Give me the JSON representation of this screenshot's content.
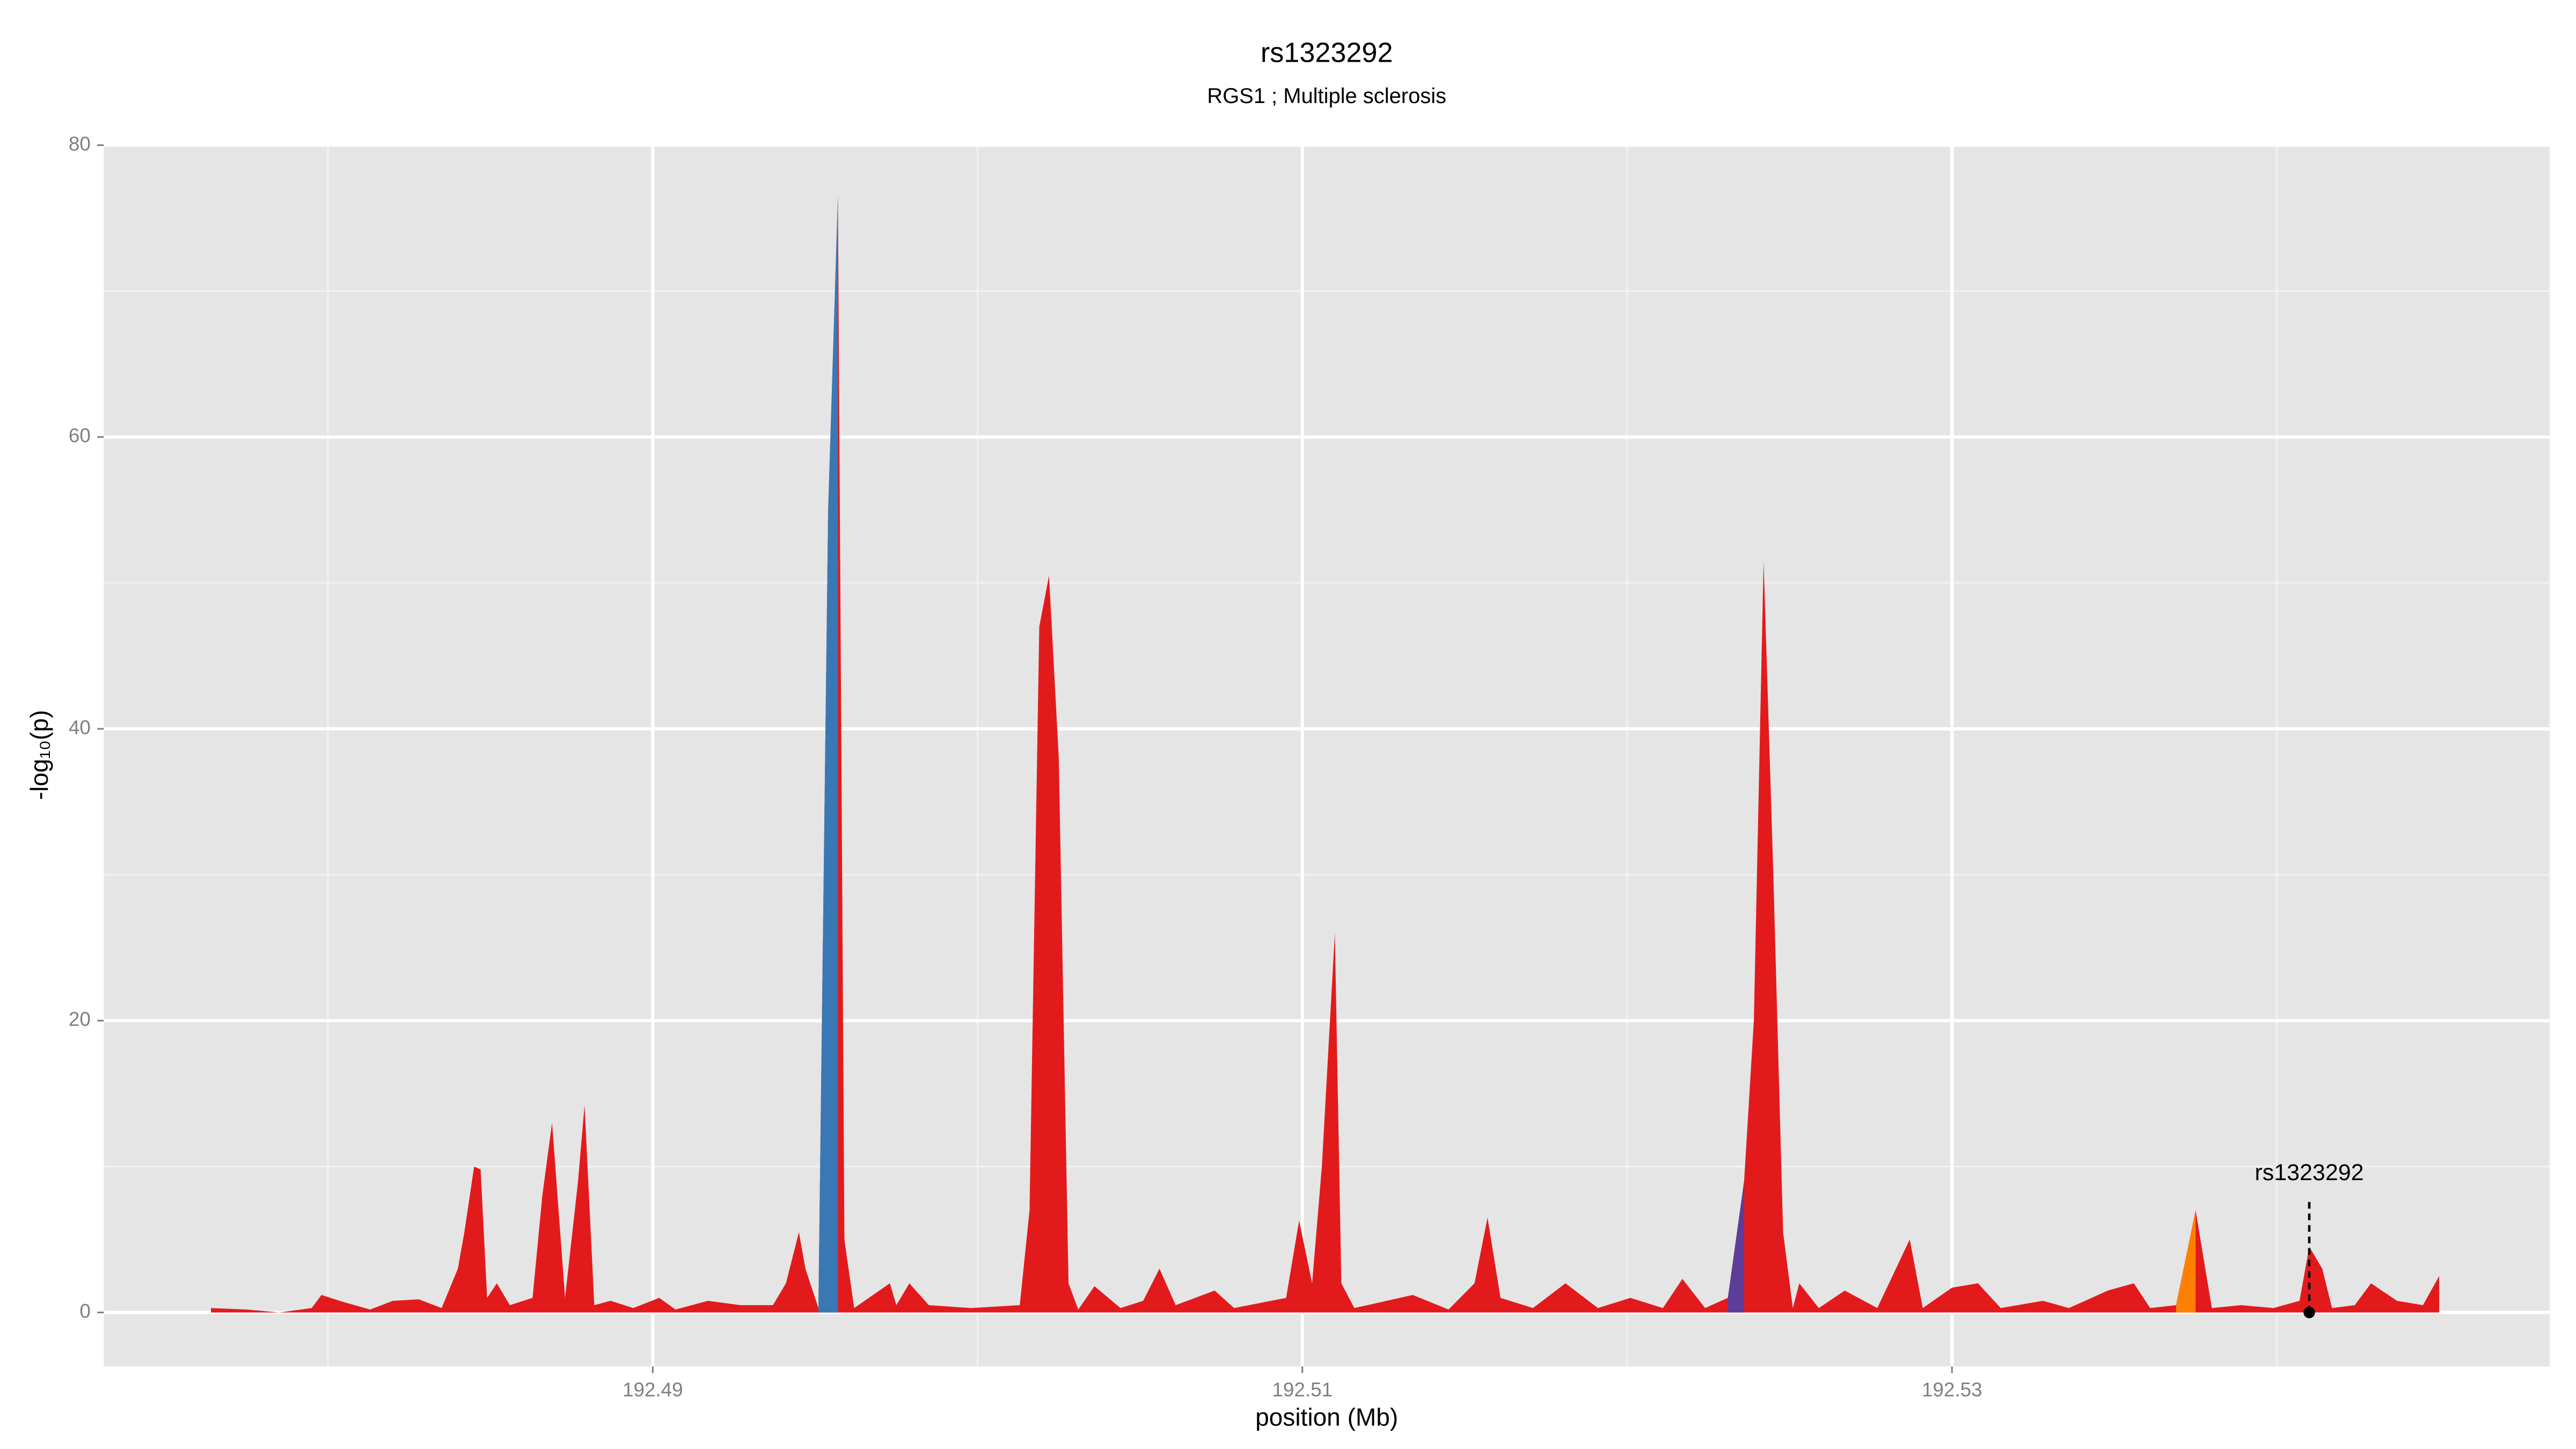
{
  "chart_data": {
    "type": "area",
    "title": "rs1323292",
    "subtitle": "RGS1 ; Multiple sclerosis",
    "x_label": "position (Mb)",
    "y_label": "-log₁₀(p)",
    "xlim": [
      192.4731,
      192.5484
    ],
    "ylim": [
      -3.7,
      80
    ],
    "xticks": [
      192.49,
      192.51,
      192.53
    ],
    "xminorticks": [
      192.48,
      192.5,
      192.52,
      192.54
    ],
    "yticks": [
      0,
      20,
      40,
      60,
      80
    ],
    "yminorticks": [
      10,
      30,
      50,
      70
    ],
    "grid": true,
    "series": [
      {
        "color": "#e31a1c",
        "x": [
          192.4764,
          192.4775,
          192.4785,
          192.4795,
          192.4798,
          192.4805,
          192.4813,
          192.482,
          192.4828,
          192.4835,
          192.484,
          192.4842,
          192.4845,
          192.4847,
          192.4849,
          192.4852,
          192.4856,
          192.4863,
          192.4866,
          192.4869,
          192.4873,
          192.4877,
          192.4879,
          192.4882,
          192.4887,
          192.4894,
          192.4902,
          192.4907,
          192.4917,
          192.4927,
          192.4937,
          192.4941,
          192.4945,
          192.4947,
          192.4951,
          192.4954,
          192.4957,
          192.4959,
          192.4962,
          192.4973,
          192.4975,
          192.4979,
          192.4985,
          192.4998,
          192.5013,
          192.5016,
          192.5019,
          192.5022,
          192.5025,
          192.5028,
          192.5031,
          192.5036,
          192.5044,
          192.5051,
          192.5056,
          192.5061,
          192.5073,
          192.5079,
          192.5095,
          192.5099,
          192.5103,
          192.5106,
          192.511,
          192.5112,
          192.5116,
          192.5134,
          192.5145,
          192.5153,
          192.5157,
          192.5161,
          192.5171,
          192.5181,
          192.5191,
          192.5201,
          192.5211,
          192.5217,
          192.5224,
          192.5231,
          192.5236,
          192.5239,
          192.5242,
          192.5245,
          192.5248,
          192.5251,
          192.5253,
          192.5259,
          192.5267,
          192.5277,
          192.5287,
          192.5291,
          192.53,
          192.5308,
          192.5315,
          192.5328,
          192.5336,
          192.5348,
          192.5356,
          192.5361,
          192.5369,
          192.5375,
          192.538,
          192.5389,
          192.5399,
          192.5407,
          192.541,
          192.5414,
          192.5417,
          192.5424,
          192.5429,
          192.5437,
          192.5445,
          192.545
        ],
        "values": [
          0.3,
          0.2,
          0,
          0.3,
          1.2,
          0.7,
          0.2,
          0.8,
          0.9,
          0.3,
          3,
          5.5,
          10,
          9.8,
          1,
          2,
          0.5,
          1,
          8,
          13,
          1,
          9,
          14.2,
          0.5,
          0.8,
          0.3,
          1,
          0.2,
          0.8,
          0.5,
          0.5,
          2,
          5.5,
          3,
          0.3,
          55,
          76.5,
          5,
          0.3,
          2,
          0.5,
          2,
          0.5,
          0.3,
          0.5,
          7,
          47,
          50.5,
          38,
          2,
          0.2,
          1.8,
          0.3,
          0.8,
          3,
          0.5,
          1.5,
          0.3,
          1,
          6.3,
          2,
          10,
          26,
          2,
          0.3,
          1.2,
          0.2,
          2,
          6.5,
          1,
          0.3,
          2,
          0.3,
          1,
          0.3,
          2.3,
          0.3,
          1,
          9,
          20,
          51.5,
          30,
          5.5,
          0.3,
          2,
          0.3,
          1.5,
          0.3,
          5,
          0.3,
          1.7,
          2,
          0.3,
          0.8,
          0.3,
          1.5,
          2,
          0.3,
          0.5,
          7,
          0.3,
          0.5,
          0.3,
          0.8,
          4.5,
          3,
          0.3,
          0.5,
          2,
          0.8,
          0.5,
          2.5
        ]
      },
      {
        "color": "#3a78b5",
        "x": [
          192.4951,
          192.4954,
          192.4957
        ],
        "values": [
          0.3,
          55,
          76.5
        ]
      },
      {
        "color": "#5e3c99",
        "x": [
          192.5231,
          192.5236
        ],
        "values": [
          1,
          9
        ]
      },
      {
        "color": "#ff7f00",
        "x": [
          192.5369,
          192.5375
        ],
        "values": [
          0.5,
          7
        ]
      }
    ],
    "annotation": {
      "text": "rs1323292",
      "x": 192.541,
      "y": 0
    }
  }
}
